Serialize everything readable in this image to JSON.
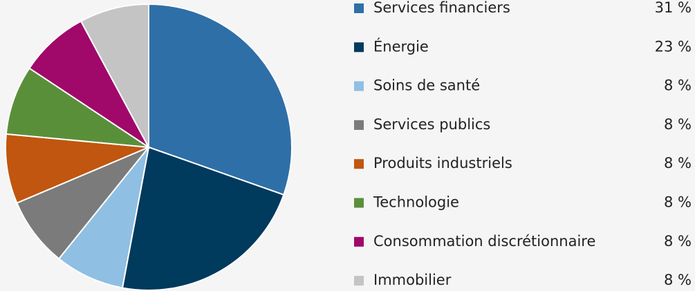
{
  "chart_data": {
    "type": "pie",
    "categories": [
      "Services financiers",
      "Énergie",
      "Soins de santé",
      "Services publics",
      "Produits industriels",
      "Technologie",
      "Consommation discrétionnaire",
      "Immobilier"
    ],
    "values": [
      31,
      23,
      8,
      8,
      8,
      8,
      8,
      8
    ],
    "value_labels": [
      "31 %",
      "23 %",
      "8 %",
      "8 %",
      "8 %",
      "8 %",
      "8 %",
      "8 %"
    ],
    "colors": [
      "#2e6fa7",
      "#003a5d",
      "#8fbfe3",
      "#7b7b7b",
      "#c0560f",
      "#5a8f3a",
      "#a0086a",
      "#c4c4c4"
    ],
    "legend": "right"
  }
}
